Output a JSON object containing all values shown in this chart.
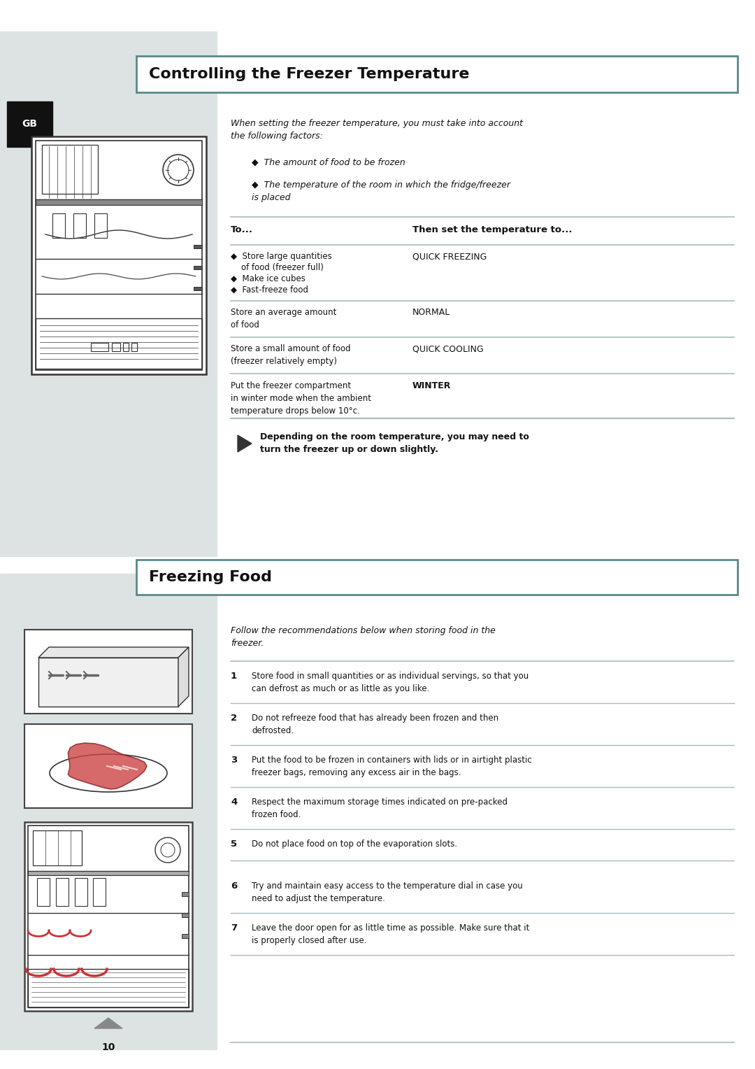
{
  "page_bg": "#ffffff",
  "left_panel_bg": "#dde3e3",
  "title1": "Controlling the Freezer Temperature",
  "title2": "Freezing Food",
  "title_bg": "#ffffff",
  "title_border": "#5a8a8a",
  "title2_border": "#5a8a8a",
  "title_font_size": 16,
  "gb_label": "GB",
  "gb_bg": "#111111",
  "intro_text1": "When setting the freezer temperature, you must take into account\nthe following factors:",
  "bullet1": "The amount of food to be frozen",
  "bullet2": "The temperature of the room in which the fridge/freezer\nis placed",
  "col_header1": "To...",
  "col_header2": "Then set the temperature to...",
  "row1_left_lines": [
    "◆  Store large quantities",
    "    of food (freezer full)",
    "◆  Make ice cubes",
    "◆  Fast-freeze food"
  ],
  "row1_right": "QUICK FREEZING",
  "row2_left_lines": [
    "Store an average amount",
    "of food"
  ],
  "row2_right": "NORMAL",
  "row3_left_lines": [
    "Store a small amount of food",
    "(freezer relatively empty)"
  ],
  "row3_right": "QUICK COOLING",
  "row4_left_lines": [
    "Put the freezer compartment",
    "in winter mode when the ambient",
    "temperature drops below 10°c."
  ],
  "row4_right": "WINTER",
  "note_text": "Depending on the room temperature, you may need to\nturn the freezer up or down slightly.",
  "freezing_intro": "Follow the recommendations below when storing food in the\nfreezer.",
  "items": [
    {
      "num": "1",
      "text": "Store food in small quantities or as individual servings, so that you\ncan defrost as much or as little as you like."
    },
    {
      "num": "2",
      "text": "Do not refreeze food that has already been frozen and then\ndefrosted."
    },
    {
      "num": "3",
      "text": "Put the food to be frozen in containers with lids or in airtight plastic\nfreezer bags, removing any excess air in the bags."
    },
    {
      "num": "4",
      "text": "Respect the maximum storage times indicated on pre-packed\nfrozen food."
    },
    {
      "num": "5",
      "text": "Do not place food on top of the evaporation slots."
    },
    {
      "num": "6",
      "text": "Try and maintain easy access to the temperature dial in case you\nneed to adjust the temperature."
    },
    {
      "num": "7",
      "text": "Leave the door open for as little time as possible. Make sure that it\nis properly closed after use."
    }
  ],
  "page_num": "10",
  "line_color": "#aabbbb",
  "text_color": "#111111",
  "header_color": "#111111",
  "body_font": 9.0,
  "bold_font": 9.5,
  "title_font": 16
}
